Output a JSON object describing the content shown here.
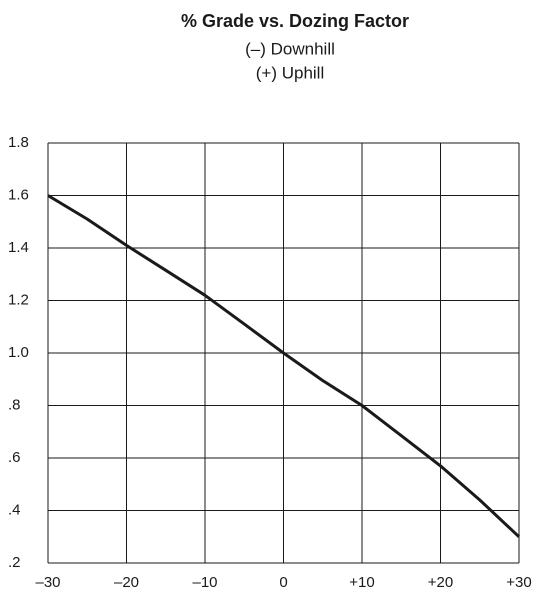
{
  "chart_data": {
    "type": "line",
    "title": "% Grade vs. Dozing Factor",
    "subtitle": [
      "(–) Downhill",
      "(+) Uphill"
    ],
    "x": [
      -30,
      -25,
      -20,
      -15,
      -10,
      -5,
      0,
      5,
      10,
      15,
      20,
      25,
      30
    ],
    "values": [
      1.6,
      1.51,
      1.41,
      1.315,
      1.22,
      1.11,
      1.0,
      0.895,
      0.8,
      0.685,
      0.57,
      0.44,
      0.3
    ],
    "color": "#1a1a1a",
    "xlim": [
      -30,
      30
    ],
    "xticks": [
      {
        "value": -30,
        "label": "–30"
      },
      {
        "value": -20,
        "label": "–20"
      },
      {
        "value": -10,
        "label": "–10"
      },
      0,
      {
        "value": 10,
        "label": "+10"
      },
      {
        "value": 20,
        "label": "+20"
      },
      {
        "value": 30,
        "label": "+30"
      }
    ],
    "ylim": [
      0.2,
      1.8
    ],
    "yticks": [
      {
        "value": 0.2,
        "label": ".2"
      },
      {
        "value": 0.4,
        "label": ".4"
      },
      {
        "value": 0.6,
        "label": ".6"
      },
      {
        "value": 0.8,
        "label": ".8"
      },
      {
        "value": 1,
        "label": "1.0"
      },
      1.2,
      1.4,
      1.6,
      1.8
    ],
    "grid": true
  }
}
